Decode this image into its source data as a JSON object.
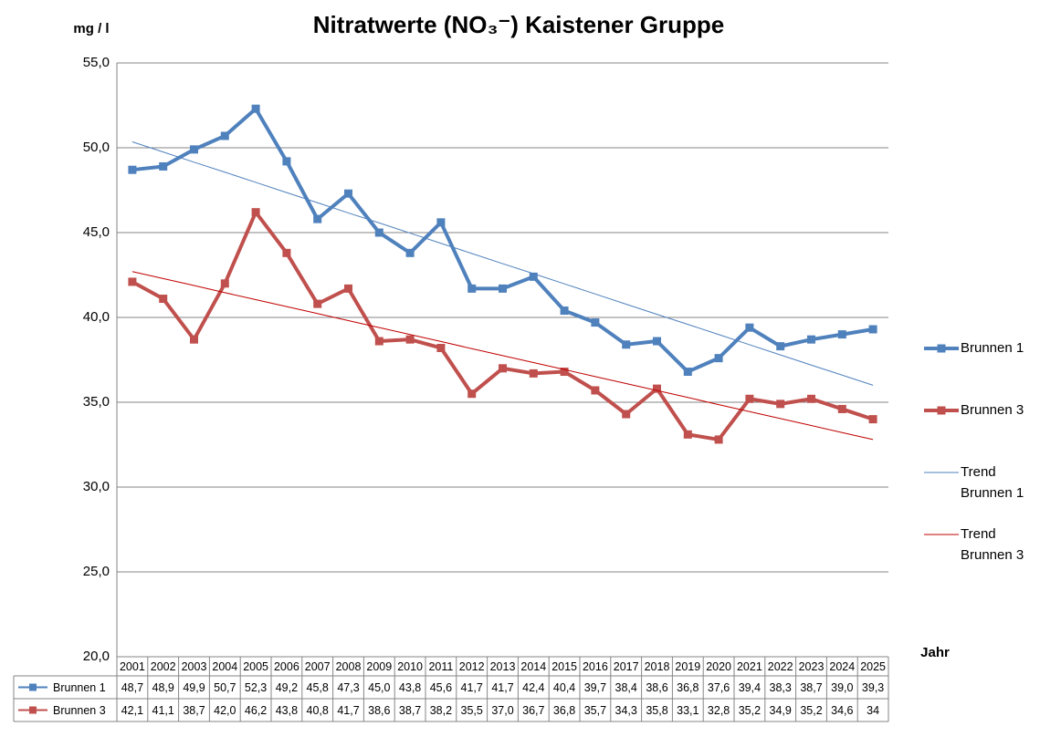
{
  "chart_data": {
    "type": "line",
    "title": "Nitratwerte (NO₃⁻) Kaistener Gruppe",
    "y_label": "mg / l",
    "x_label": "Jahr",
    "categories": [
      "2001",
      "2002",
      "2003",
      "2004",
      "2005",
      "2006",
      "2007",
      "2008",
      "2009",
      "2010",
      "2011",
      "2012",
      "2013",
      "2014",
      "2015",
      "2016",
      "2017",
      "2018",
      "2019",
      "2020",
      "2021",
      "2022",
      "2023",
      "2024",
      "2025"
    ],
    "ylim": [
      20,
      55
    ],
    "yticks": [
      {
        "value": 20,
        "label": "20,0"
      },
      {
        "value": 25,
        "label": "25,0"
      },
      {
        "value": 30,
        "label": "30,0"
      },
      {
        "value": 35,
        "label": "35,0"
      },
      {
        "value": 40,
        "label": "40,0"
      },
      {
        "value": 45,
        "label": "45,0"
      },
      {
        "value": 50,
        "label": "50,0"
      },
      {
        "value": 55,
        "label": "55,0"
      }
    ],
    "grid": true,
    "legend": "right",
    "data_table": true,
    "series": [
      {
        "name": "Brunnen 1",
        "color": "#4f81bd",
        "line_width": 4,
        "markers": true,
        "in_table": true,
        "values": [
          48.7,
          48.9,
          49.9,
          50.7,
          52.3,
          49.2,
          45.8,
          47.3,
          45.0,
          43.8,
          45.6,
          41.7,
          41.7,
          42.4,
          40.4,
          39.7,
          38.4,
          38.6,
          36.8,
          37.6,
          39.4,
          38.3,
          38.7,
          39.0,
          39.3
        ],
        "value_labels": [
          "48,7",
          "48,9",
          "49,9",
          "50,7",
          "52,3",
          "49,2",
          "45,8",
          "47,3",
          "45,0",
          "43,8",
          "45,6",
          "41,7",
          "41,7",
          "42,4",
          "40,4",
          "39,7",
          "38,4",
          "38,6",
          "36,8",
          "37,6",
          "39,4",
          "38,3",
          "38,7",
          "39,0",
          "39,3"
        ]
      },
      {
        "name": "Brunnen 3",
        "color": "#c0504d",
        "line_width": 4,
        "markers": true,
        "in_table": true,
        "values": [
          42.1,
          41.1,
          38.7,
          42.0,
          46.2,
          43.8,
          40.8,
          41.7,
          38.6,
          38.7,
          38.2,
          35.5,
          37.0,
          36.7,
          36.8,
          35.7,
          34.3,
          35.8,
          33.1,
          32.8,
          35.2,
          34.9,
          35.2,
          34.6,
          34
        ],
        "value_labels": [
          "42,1",
          "41,1",
          "38,7",
          "42,0",
          "46,2",
          "43,8",
          "40,8",
          "41,7",
          "38,6",
          "38,7",
          "38,2",
          "35,5",
          "37,0",
          "36,7",
          "36,8",
          "35,7",
          "34,3",
          "35,8",
          "33,1",
          "32,8",
          "35,2",
          "34,9",
          "35,2",
          "34,6",
          "34"
        ]
      },
      {
        "name": "Trend Brunnen 1",
        "color": "#4f81bd",
        "line_width": 1,
        "markers": false,
        "in_table": false,
        "values": [
          50.35,
          49.75,
          49.15,
          48.56,
          47.96,
          47.36,
          46.76,
          46.16,
          45.57,
          44.97,
          44.37,
          43.77,
          43.17,
          42.58,
          41.98,
          41.38,
          40.78,
          40.18,
          39.59,
          38.99,
          38.39,
          37.79,
          37.19,
          36.6,
          36.0
        ]
      },
      {
        "name": "Trend Brunnen 3",
        "color": "#c00000",
        "line_width": 1,
        "markers": false,
        "in_table": false,
        "values": [
          42.7,
          42.29,
          41.88,
          41.46,
          41.05,
          40.64,
          40.23,
          39.81,
          39.4,
          38.99,
          38.58,
          38.16,
          37.75,
          37.34,
          36.93,
          36.51,
          36.1,
          35.69,
          35.28,
          34.86,
          34.45,
          34.04,
          33.63,
          33.21,
          32.8
        ]
      }
    ]
  }
}
